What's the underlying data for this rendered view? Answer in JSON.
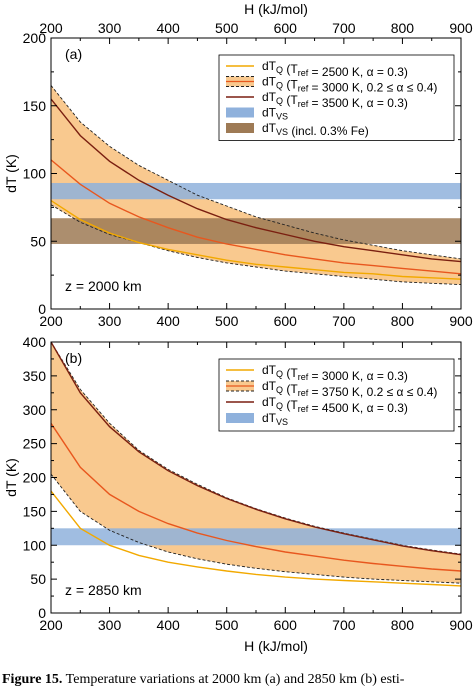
{
  "chart_data": [
    {
      "type": "line",
      "panel_label": "(a)",
      "xlabel": "H (kJ/mol)",
      "ylabel": "dT (K)",
      "xlim": [
        200,
        900
      ],
      "ylim": [
        0,
        200
      ],
      "xticks": [
        200,
        300,
        400,
        500,
        600,
        700,
        800,
        900
      ],
      "yticks": [
        0,
        50,
        100,
        150,
        200
      ],
      "top_xlabel": "H (kJ/mol)",
      "top_xticks": [
        200,
        300,
        400,
        500,
        600,
        700,
        800,
        900
      ],
      "annotation": "z = 2000 km",
      "legend_position": "top-right",
      "legend": [
        {
          "kind": "line",
          "color": "#f2a900",
          "text": "dT",
          "sub": "Q",
          "rest": " (T",
          "sub2": "ref",
          "rest2": " = 2500 K, α = 0.3)"
        },
        {
          "kind": "band",
          "color": "#f9c98f",
          "text": "dT",
          "sub": "Q",
          "rest": " (T",
          "sub2": "ref",
          "rest2": " = 3000 K, 0.2 ≤ α ≤ 0.4)"
        },
        {
          "kind": "line",
          "color": "#7a1f10",
          "text": "dT",
          "sub": "Q",
          "rest": " (T",
          "sub2": "ref",
          "rest2": " = 3500 K, α = 0.3)"
        },
        {
          "kind": "rect",
          "color": "#8fb1dc",
          "text": "dT",
          "sub": "VS",
          "rest": "",
          "sub2": "",
          "rest2": ""
        },
        {
          "kind": "rect",
          "color": "#9e7a55",
          "text": "dT",
          "sub": "VS",
          "rest": " (incl. 0.3% Fe)",
          "sub2": "",
          "rest2": ""
        }
      ],
      "bands": [
        {
          "name": "dTVS",
          "y": [
            81,
            93
          ],
          "color": "#8fb1dc"
        },
        {
          "name": "dTVS incl. Fe",
          "y": [
            48,
            67
          ],
          "color": "#9e7a55"
        }
      ],
      "area": {
        "color": "#f9c98f",
        "x": [
          200,
          250,
          300,
          350,
          400,
          450,
          500,
          550,
          600,
          650,
          700,
          750,
          800,
          850,
          900
        ],
        "upper": [
          165,
          138,
          120,
          106,
          95,
          84,
          76,
          68,
          62,
          56,
          51,
          47,
          43,
          40,
          37
        ],
        "lower": [
          77,
          64,
          55,
          49,
          43,
          38,
          34,
          31,
          28,
          26,
          24,
          22,
          20,
          19,
          18
        ]
      },
      "series": [
        {
          "name": "2500 K",
          "color": "#f2a900",
          "x": [
            200,
            250,
            300,
            350,
            400,
            450,
            500,
            550,
            600,
            650,
            700,
            750,
            800,
            850,
            900
          ],
          "y": [
            80,
            66,
            56,
            49,
            44,
            40,
            36,
            33,
            31,
            29,
            27,
            26,
            24,
            23,
            22
          ]
        },
        {
          "name": "3000 K",
          "color": "#e8571e",
          "x": [
            200,
            250,
            300,
            350,
            400,
            450,
            500,
            550,
            600,
            650,
            700,
            750,
            800,
            850,
            900
          ],
          "y": [
            110,
            92,
            78,
            68,
            60,
            53,
            48,
            44,
            40,
            37,
            34,
            32,
            30,
            28,
            26
          ]
        },
        {
          "name": "3500 K",
          "color": "#7a1f10",
          "x": [
            200,
            250,
            300,
            350,
            400,
            450,
            500,
            550,
            600,
            650,
            700,
            750,
            800,
            850,
            900
          ],
          "y": [
            155,
            128,
            109,
            95,
            84,
            74,
            66,
            60,
            55,
            50,
            46,
            43,
            40,
            37,
            35
          ]
        }
      ]
    },
    {
      "type": "line",
      "panel_label": "(b)",
      "xlabel": "H (kJ/mol)",
      "ylabel": "dT (K)",
      "xlim": [
        200,
        900
      ],
      "ylim": [
        0,
        400
      ],
      "xticks": [
        200,
        300,
        400,
        500,
        600,
        700,
        800,
        900
      ],
      "yticks": [
        0,
        50,
        100,
        150,
        200,
        250,
        300,
        350,
        400
      ],
      "annotation": "z = 2850 km",
      "legend_position": "top-right",
      "legend": [
        {
          "kind": "line",
          "color": "#f2a900",
          "text": "dT",
          "sub": "Q",
          "rest": " (T",
          "sub2": "ref",
          "rest2": " = 3000 K, α = 0.3)"
        },
        {
          "kind": "band",
          "color": "#f9c98f",
          "text": "dT",
          "sub": "Q",
          "rest": " (T",
          "sub2": "ref",
          "rest2": " = 3750 K, 0.2 ≤ α ≤ 0.4)"
        },
        {
          "kind": "line",
          "color": "#7a1f10",
          "text": "dT",
          "sub": "Q",
          "rest": " (T",
          "sub2": "ref",
          "rest2": " = 4500 K, α = 0.3)"
        },
        {
          "kind": "rect",
          "color": "#8fb1dc",
          "text": "dT",
          "sub": "VS",
          "rest": "",
          "sub2": "",
          "rest2": ""
        }
      ],
      "bands": [
        {
          "name": "dTVS",
          "y": [
            100,
            125
          ],
          "color": "#8fb1dc"
        }
      ],
      "area": {
        "color": "#f9c98f",
        "x": [
          200,
          250,
          300,
          350,
          400,
          450,
          500,
          550,
          600,
          650,
          700,
          750,
          800,
          850,
          900
        ],
        "upper": [
          400,
          330,
          280,
          240,
          212,
          190,
          170,
          154,
          140,
          128,
          118,
          109,
          100,
          93,
          87
        ],
        "lower": [
          205,
          150,
          122,
          104,
          90,
          80,
          72,
          66,
          61,
          57,
          53,
          50,
          48,
          46,
          44
        ]
      },
      "series": [
        {
          "name": "3000 K",
          "color": "#f2a900",
          "x": [
            200,
            250,
            300,
            350,
            400,
            450,
            500,
            550,
            600,
            650,
            700,
            750,
            800,
            850,
            900
          ],
          "y": [
            180,
            125,
            100,
            85,
            75,
            68,
            62,
            57,
            53,
            50,
            48,
            46,
            44,
            42,
            40
          ]
        },
        {
          "name": "3750 K",
          "color": "#e8571e",
          "x": [
            200,
            250,
            300,
            350,
            400,
            450,
            500,
            550,
            600,
            650,
            700,
            750,
            800,
            850,
            900
          ],
          "y": [
            280,
            215,
            175,
            150,
            132,
            118,
            107,
            98,
            90,
            84,
            78,
            73,
            69,
            65,
            62
          ]
        },
        {
          "name": "4500 K",
          "color": "#7a1f10",
          "x": [
            200,
            250,
            300,
            350,
            400,
            450,
            500,
            550,
            600,
            650,
            700,
            750,
            800,
            850,
            900
          ],
          "y": [
            400,
            325,
            275,
            238,
            210,
            188,
            169,
            153,
            139,
            127,
            117,
            108,
            99,
            92,
            86
          ]
        }
      ]
    }
  ],
  "caption": {
    "bold": "Figure 15.",
    "text": " Temperature variations at 2000 km (a) and 2850 km (b) esti-"
  }
}
